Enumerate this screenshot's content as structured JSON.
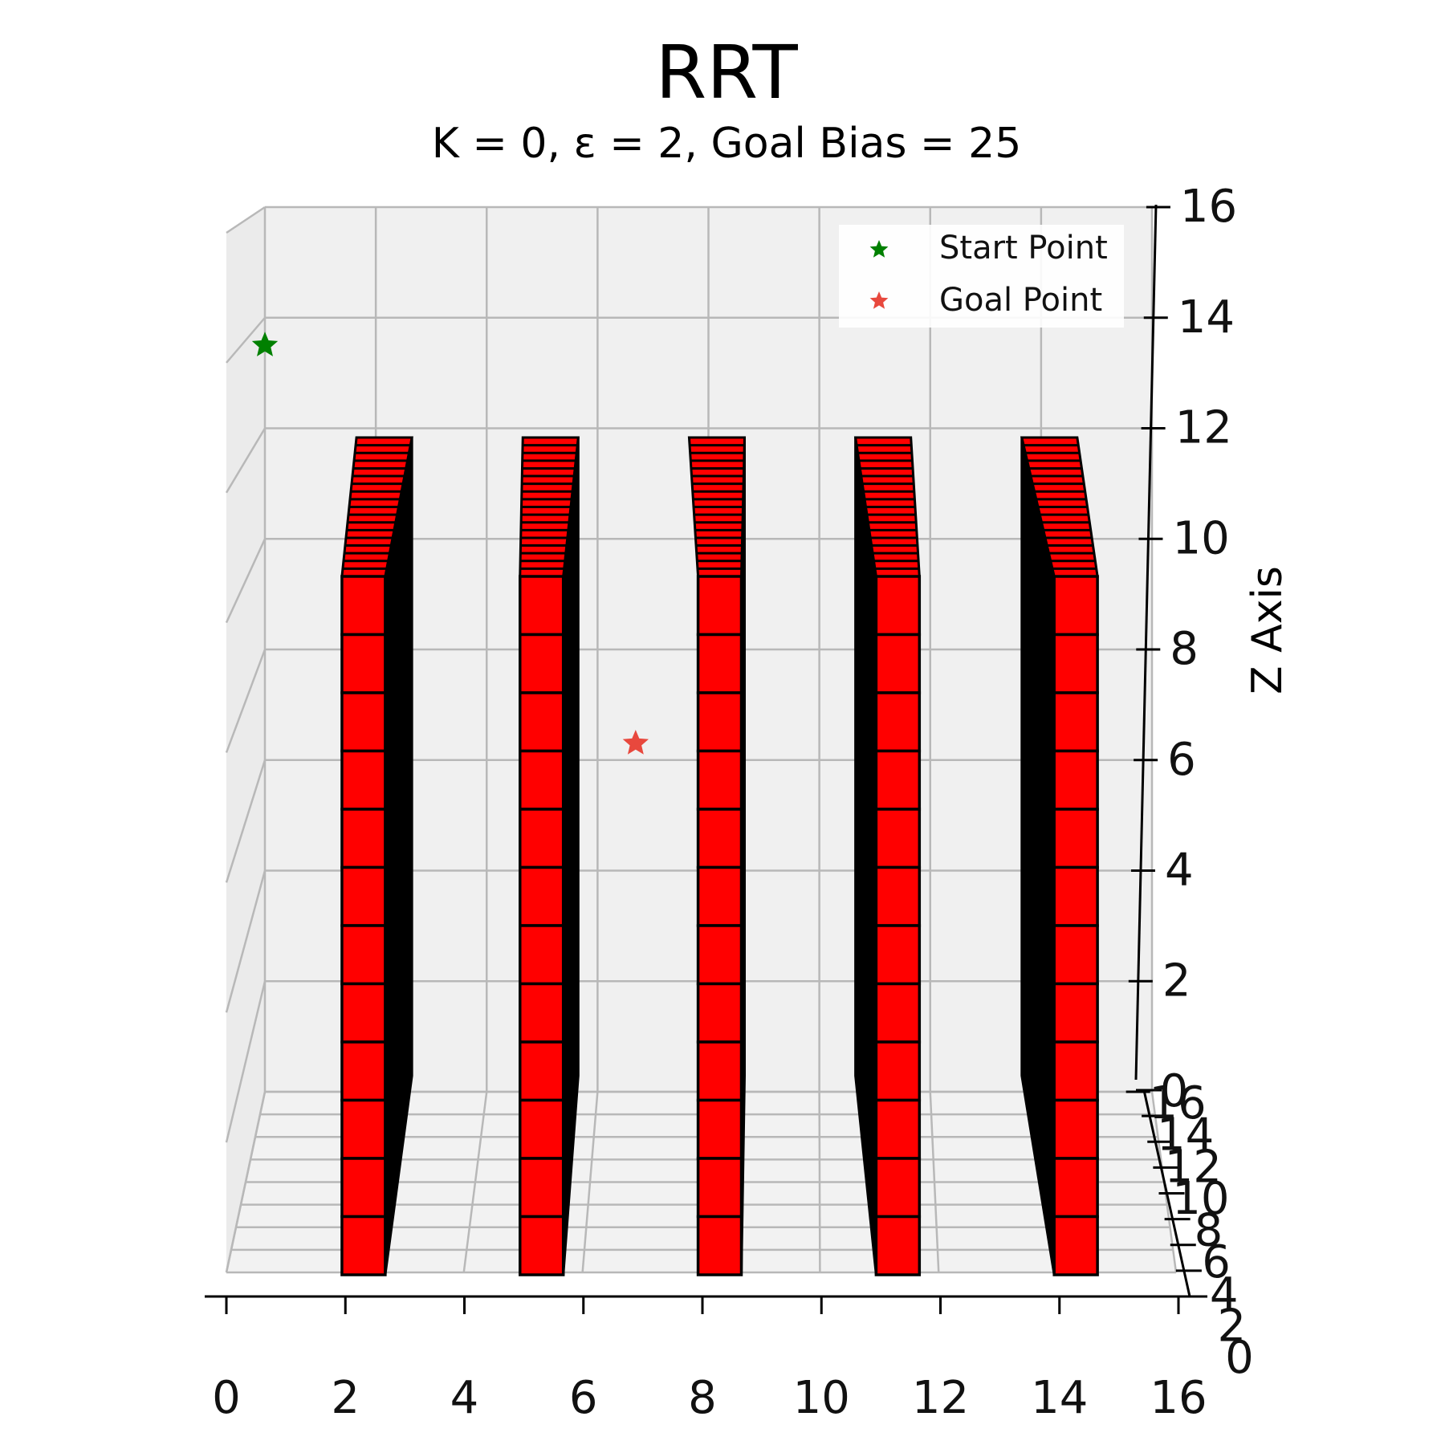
{
  "chart_data": {
    "type": "scatter",
    "projection": "3d",
    "title": "RRT",
    "subtitle": "K = 0, ε = 2, Goal Bias = 25",
    "zlabel": "Z Axis",
    "xlim": [
      0,
      16
    ],
    "ylim": [
      0,
      16
    ],
    "zlim": [
      0,
      16
    ],
    "x_ticks": [
      "0",
      "2",
      "4",
      "6",
      "8",
      "10",
      "12",
      "14",
      "16"
    ],
    "y_ticks": [
      "0",
      "2",
      "4",
      "6",
      "8",
      "10",
      "12",
      "14",
      "16"
    ],
    "z_ticks": [
      "0",
      "2",
      "4",
      "6",
      "8",
      "10",
      "12",
      "14",
      "16"
    ],
    "grid": true,
    "legend_position": "top-right",
    "series": [
      {
        "name": "Start Point",
        "color": "#008000",
        "marker": "star",
        "points": [
          {
            "x": 0,
            "z": 13.5
          }
        ]
      },
      {
        "name": "Goal Point",
        "color": "#e8483d",
        "marker": "star",
        "points": [
          {
            "x": 5.5,
            "z": 6.3
          }
        ]
      }
    ],
    "obstacles": {
      "color": "#ff0000",
      "edge_color": "#000000",
      "columns_x": [
        1,
        4,
        7,
        10,
        13
      ],
      "cube_size": 1,
      "z_range": [
        0,
        12
      ]
    }
  }
}
